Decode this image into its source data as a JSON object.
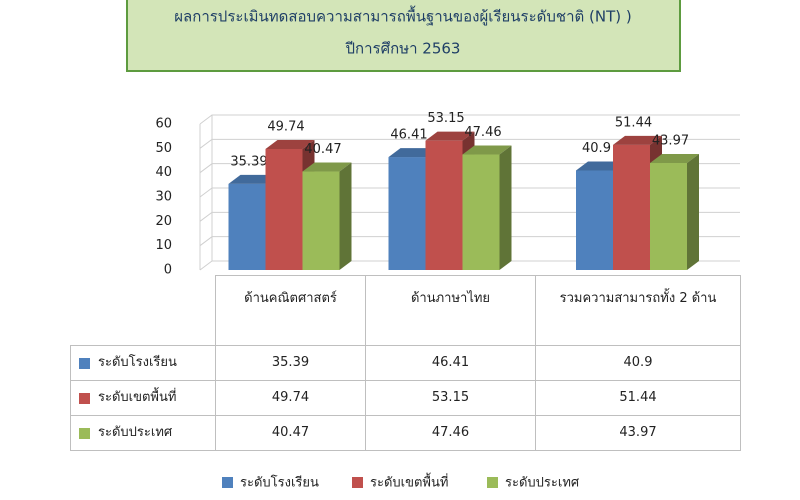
{
  "chart_data": {
    "type": "bar3d",
    "title": "ผลการประเมินทดสอบความสามารถพื้นฐานของผู้เรียนระดับชาติ (NT) )",
    "subtitle": "ปีการศึกษา 2563",
    "categories": [
      "ด้านคณิตศาสตร์",
      "ด้านภาษาไทย",
      "รวมความสามารถทั้ง 2 ด้าน"
    ],
    "series": [
      {
        "name": "ระดับโรงเรียน",
        "color": "#4f81bd",
        "values": [
          35.39,
          46.41,
          40.9
        ]
      },
      {
        "name": "ระดับเขตพื้นที่",
        "color": "#c0504d",
        "values": [
          49.74,
          53.15,
          51.44
        ]
      },
      {
        "name": "ระดับประเทศ",
        "color": "#9bbb59",
        "values": [
          40.47,
          47.46,
          43.97
        ]
      }
    ],
    "ylim": [
      0,
      60
    ],
    "yticks": [
      0,
      10,
      20,
      30,
      40,
      50,
      60
    ],
    "grid": true,
    "legend": "bottom"
  }
}
